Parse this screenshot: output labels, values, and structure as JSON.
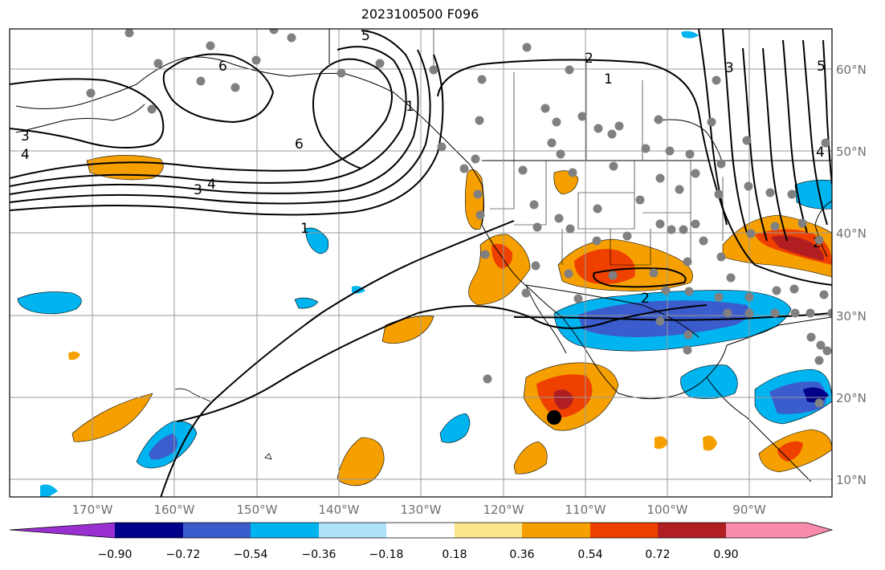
{
  "title": "2023100500 F096",
  "lon_ticks": [
    "170°W",
    "160°W",
    "150°W",
    "140°W",
    "130°W",
    "120°W",
    "110°W",
    "100°W",
    "90°W"
  ],
  "lat_ticks": [
    "60°N",
    "50°N",
    "40°N",
    "30°N",
    "20°N",
    "10°N"
  ],
  "colorbar": {
    "ticks": [
      "−0.90",
      "−0.72",
      "−0.54",
      "−0.36",
      "−0.18",
      "0.18",
      "0.36",
      "0.54",
      "0.72",
      "0.90"
    ],
    "colors": [
      "#9b30d0",
      "#00008b",
      "#3a5ccc",
      "#00b4f0",
      "#aee0f8",
      "#ffffff",
      "#fde68a",
      "#f5a000",
      "#f04000",
      "#b01e22",
      "#f88aac"
    ]
  },
  "contour_labels": [
    "6",
    "6",
    "5",
    "5",
    "4",
    "4",
    "4",
    "3",
    "3",
    "3",
    "2",
    "2",
    "1",
    "1",
    "1",
    "2"
  ],
  "colors": {
    "grid": "#9a9a9a",
    "contour": "#000000",
    "station": "#808080",
    "marker": "#000000"
  }
}
